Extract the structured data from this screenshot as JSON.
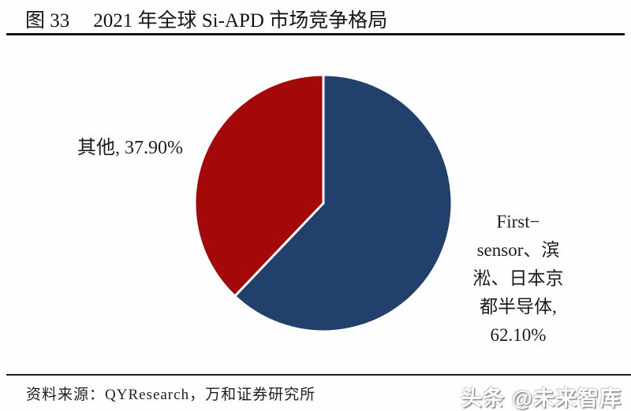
{
  "title": {
    "figure_no": "图 33",
    "text": "2021 年全球 Si-APD 市场竞争格局"
  },
  "chart_data": {
    "type": "pie",
    "title": "2021 年全球 Si-APD 市场竞争格局",
    "start_angle_deg": 0,
    "direction": "clockwise",
    "legend_position": "none",
    "labels_position": "outside",
    "slices": [
      {
        "label": "First-sensor、滨淞、日本京都半导体",
        "value": 62.1,
        "color": "#21406B"
      },
      {
        "label": "其他",
        "value": 37.9,
        "color": "#A40808"
      }
    ],
    "separator_color": "#ffffff"
  },
  "labels": {
    "other": {
      "text": "其他, 37.90%"
    },
    "main": {
      "lines": [
        "First−",
        "sensor、滨",
        "淞、日本京",
        "都半导体,",
        "62.10%"
      ]
    }
  },
  "footer": {
    "source": "资料来源：QYResearch，万和证券研究所",
    "watermark": "头条 @未来智库"
  },
  "colors": {
    "blue": "#21406B",
    "red": "#A40808",
    "rule": "#101010"
  }
}
